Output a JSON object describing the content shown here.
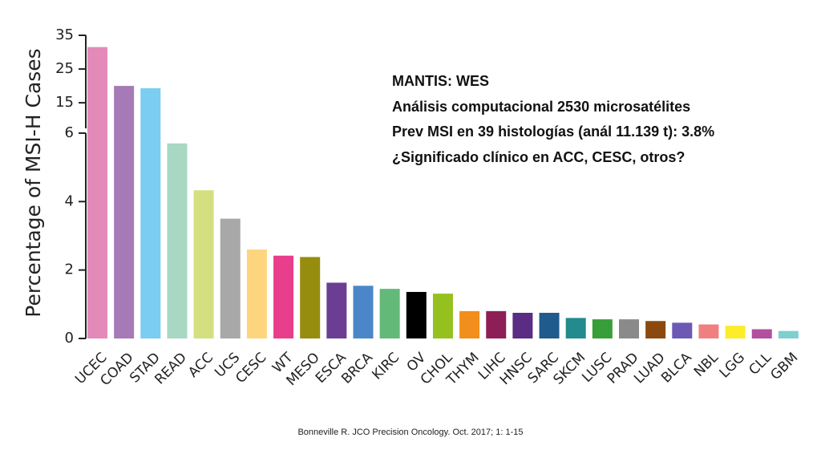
{
  "chart_data": {
    "type": "bar",
    "ylabel": "Percentage of MSI-H Cases",
    "categories": [
      "UCEC",
      "COAD",
      "STAD",
      "READ",
      "ACC",
      "UCS",
      "CESC",
      "WT",
      "MESO",
      "ESCA",
      "BRCA",
      "KIRC",
      "OV",
      "CHOL",
      "THYM",
      "LIHC",
      "HNSC",
      "SARC",
      "SKCM",
      "LUSC",
      "PRAD",
      "LUAD",
      "BLCA",
      "NBL",
      "LGG",
      "CLL",
      "GBM"
    ],
    "values": [
      31.5,
      20,
      19.3,
      5.7,
      4.33,
      3.5,
      2.6,
      2.42,
      2.38,
      1.63,
      1.54,
      1.45,
      1.36,
      1.31,
      0.8,
      0.8,
      0.75,
      0.75,
      0.6,
      0.56,
      0.56,
      0.51,
      0.46,
      0.41,
      0.37,
      0.27,
      0.22
    ],
    "colors": [
      "#e38ab8",
      "#a67ab6",
      "#7bcdf2",
      "#a8d8c2",
      "#d4df7f",
      "#a8a8a8",
      "#fdd57e",
      "#e83e8c",
      "#968c0e",
      "#6b3e93",
      "#4b87c8",
      "#62b978",
      "#000000",
      "#95c11f",
      "#f28e1b",
      "#8e1f56",
      "#5a2c84",
      "#1f5b8c",
      "#238a8d",
      "#389e39",
      "#8a8a8a",
      "#8b4a0d",
      "#6b59b5",
      "#f08080",
      "#fcec29",
      "#b14fa0",
      "#7fcfcf"
    ],
    "yticks": [
      {
        "label": "0",
        "value": 0
      },
      {
        "label": "2",
        "value": 2
      },
      {
        "label": "4",
        "value": 4
      },
      {
        "label": "6",
        "value": 6
      },
      {
        "label": "15",
        "value": 15
      },
      {
        "label": "25",
        "value": 25
      },
      {
        "label": "35",
        "value": 35
      }
    ],
    "ylim": [
      0,
      35
    ],
    "axis_break": "broken y-axis above 6",
    "grid": false,
    "legend": "none"
  },
  "annotation": {
    "line1": "MANTIS: WES",
    "line2": "Análisis computacional 2530 microsatélites",
    "line3": "Prev MSI en 39 histologías (anál 11.139 t): 3.8%",
    "line4": "¿Significado clínico en ACC, CESC, otros?"
  },
  "citation": "Bonneville R. JCO Precision Oncology. Oct. 2017; 1: 1-15"
}
